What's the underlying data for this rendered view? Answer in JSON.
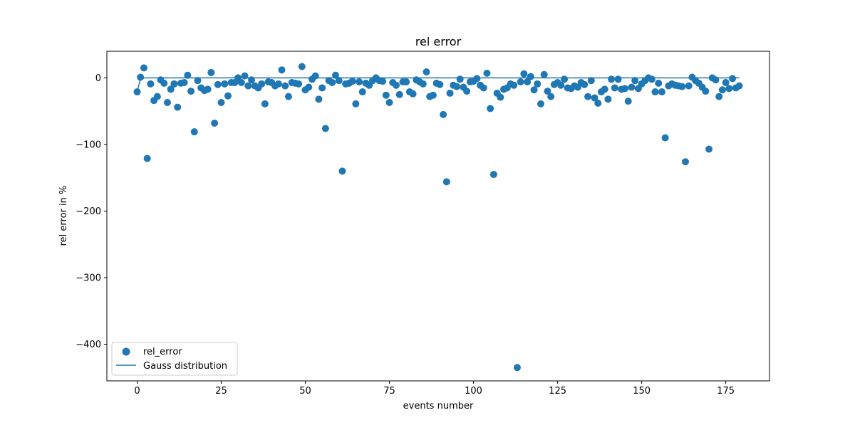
{
  "chart_data": {
    "type": "scatter",
    "title": "rel error",
    "xlabel": "events number",
    "ylabel": "rel error in %",
    "xlim": [
      -9,
      188
    ],
    "ylim": [
      -455,
      40
    ],
    "xticks": [
      0,
      25,
      50,
      75,
      100,
      125,
      150,
      175
    ],
    "yticks": [
      0,
      -100,
      -200,
      -300,
      -400
    ],
    "ytick_labels": [
      "0",
      "−100",
      "−200",
      "−300",
      "−400"
    ],
    "grid": false,
    "legend_position": "lower-left",
    "legend": [
      "rel_error",
      "Gauss distribution"
    ],
    "colors": {
      "series": "#1f77b4"
    },
    "series": [
      {
        "name": "rel_error",
        "type": "scatter",
        "x": [
          0,
          1,
          2,
          3,
          4,
          5,
          6,
          7,
          8,
          9,
          10,
          11,
          12,
          13,
          14,
          15,
          16,
          17,
          18,
          19,
          20,
          21,
          22,
          23,
          24,
          25,
          26,
          27,
          28,
          29,
          30,
          31,
          32,
          33,
          34,
          35,
          36,
          37,
          38,
          39,
          40,
          41,
          42,
          43,
          44,
          45,
          46,
          47,
          48,
          49,
          50,
          51,
          52,
          53,
          54,
          55,
          56,
          57,
          58,
          59,
          60,
          61,
          62,
          63,
          64,
          65,
          66,
          67,
          68,
          69,
          70,
          71,
          72,
          73,
          74,
          75,
          76,
          77,
          78,
          79,
          80,
          81,
          82,
          83,
          84,
          85,
          86,
          87,
          88,
          89,
          90,
          91,
          92,
          93,
          94,
          95,
          96,
          97,
          98,
          99,
          100,
          101,
          102,
          103,
          104,
          105,
          106,
          107,
          108,
          109,
          110,
          111,
          112,
          113,
          114,
          115,
          116,
          117,
          118,
          119,
          120,
          121,
          122,
          123,
          124,
          125,
          126,
          127,
          128,
          129,
          130,
          131,
          132,
          133,
          134,
          135,
          136,
          137,
          138,
          139,
          140,
          141,
          142,
          143,
          144,
          145,
          146,
          147,
          148,
          149,
          150,
          151,
          152,
          153,
          154,
          155,
          156,
          157,
          158,
          159,
          160,
          161,
          162,
          163,
          164,
          165,
          166,
          167,
          168,
          169,
          170,
          171,
          172,
          173,
          174,
          175,
          176,
          177,
          178,
          179
        ],
        "y": [
          -21,
          1,
          15,
          -121,
          -9,
          -34,
          -28,
          -3,
          -8,
          -37,
          -17,
          -9,
          -44,
          -8,
          -7,
          4,
          -20,
          -81,
          -4,
          -15,
          -19,
          -17,
          8,
          -68,
          -10,
          -37,
          -9,
          -27,
          -7,
          -7,
          0,
          -7,
          3,
          -12,
          -3,
          -12,
          -15,
          -9,
          -39,
          -6,
          -7,
          -12,
          -9,
          12,
          -12,
          -28,
          -7,
          -8,
          -9,
          17,
          -18,
          -14,
          -2,
          3,
          -32,
          -15,
          -76,
          -4,
          -7,
          4,
          -4,
          -140,
          -9,
          -8,
          -5,
          -39,
          -6,
          -21,
          -8,
          -11,
          -4,
          0,
          -4,
          -5,
          -26,
          -37,
          -7,
          -11,
          -25,
          -6,
          -6,
          -21,
          -24,
          -3,
          -6,
          -9,
          9,
          -28,
          -26,
          -8,
          -10,
          -55,
          -156,
          -23,
          -11,
          -13,
          -2,
          -14,
          -20,
          -6,
          -5,
          -1,
          -11,
          -15,
          7,
          -46,
          -145,
          -23,
          -29,
          -17,
          -15,
          -9,
          -11,
          -435,
          -6,
          6,
          -6,
          2,
          -18,
          -9,
          -39,
          5,
          -20,
          -28,
          -10,
          -7,
          -11,
          -2,
          -15,
          -16,
          -12,
          -14,
          -7,
          -10,
          -28,
          -4,
          -30,
          -38,
          -21,
          -17,
          -32,
          -2,
          -15,
          -2,
          -17,
          -16,
          -35,
          -14,
          -4,
          -16,
          -9,
          -4,
          0,
          -2,
          -21,
          -8,
          -21,
          -90,
          -12,
          -9,
          -11,
          -12,
          -13,
          -126,
          -12,
          1,
          -4,
          -8,
          -14,
          -20,
          -107,
          0,
          -3,
          -28,
          -18,
          -7,
          -16,
          -1,
          -15,
          -12
        ]
      },
      {
        "name": "Gauss distribution",
        "type": "line",
        "x": [
          0,
          1,
          2,
          179
        ],
        "y": [
          -21,
          -1,
          0,
          0
        ]
      }
    ]
  }
}
